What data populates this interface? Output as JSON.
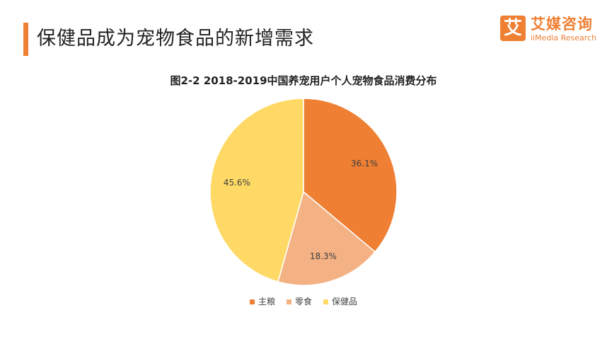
{
  "header": {
    "title": "保健品成为宠物食品的新增需求",
    "accent_color": "#ee7f33"
  },
  "logo": {
    "mark": "艾",
    "name_cn": "艾媒咨询",
    "name_en": "iiMedia Research",
    "color": "#ee7f33"
  },
  "chart_data": {
    "type": "pie",
    "title": "图2-2  2018-2019中国养宠用户个人宠物食品消费分布",
    "categories": [
      "主粮",
      "零食",
      "保健品"
    ],
    "values": [
      36.1,
      18.3,
      45.6
    ],
    "labels": [
      "36.1%",
      "18.3%",
      "45.6%"
    ],
    "colors": [
      "#ee7f33",
      "#f4b183",
      "#fed966"
    ],
    "start": "12 o'clock",
    "direction": "clockwise",
    "legend_position": "bottom"
  }
}
